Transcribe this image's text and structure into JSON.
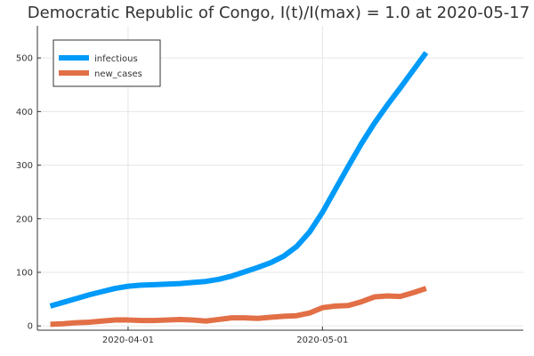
{
  "chart_data": {
    "type": "line",
    "title": "Democratic Republic of Congo,  I(t)/I(max) = 1.0 at 2020-05-17",
    "xlabel": "",
    "ylabel": "",
    "x_ticks": [
      {
        "date": "2020-04-01",
        "label": "2020-04-01"
      },
      {
        "date": "2020-05-01",
        "label": "2020-05-01"
      }
    ],
    "y_ticks": [
      0,
      100,
      200,
      300,
      400,
      500
    ],
    "xlim": [
      "2020-03-18",
      "2020-06-01"
    ],
    "ylim": [
      -8,
      560
    ],
    "grid": true,
    "legend_position": "top-left",
    "x": [
      "2020-03-20",
      "2020-03-22",
      "2020-03-24",
      "2020-03-26",
      "2020-03-28",
      "2020-03-30",
      "2020-04-01",
      "2020-04-03",
      "2020-04-05",
      "2020-04-07",
      "2020-04-09",
      "2020-04-11",
      "2020-04-13",
      "2020-04-15",
      "2020-04-17",
      "2020-04-19",
      "2020-04-21",
      "2020-04-23",
      "2020-04-25",
      "2020-04-27",
      "2020-04-29",
      "2020-05-01",
      "2020-05-03",
      "2020-05-05",
      "2020-05-07",
      "2020-05-09",
      "2020-05-11",
      "2020-05-13",
      "2020-05-15",
      "2020-05-17"
    ],
    "series": [
      {
        "name": "infectious",
        "color": "#009af9",
        "values": [
          37,
          44,
          51,
          58,
          64,
          70,
          74,
          76,
          77,
          78,
          79,
          81,
          83,
          87,
          93,
          101,
          109,
          118,
          130,
          148,
          175,
          212,
          255,
          298,
          340,
          378,
          412,
          444,
          477,
          510
        ]
      },
      {
        "name": "new_cases",
        "color": "#e26f46",
        "values": [
          3,
          4,
          6,
          7,
          9,
          11,
          11,
          10,
          10,
          11,
          12,
          11,
          9,
          12,
          15,
          15,
          14,
          16,
          18,
          19,
          24,
          34,
          37,
          38,
          45,
          54,
          56,
          55,
          62,
          70
        ]
      }
    ]
  }
}
